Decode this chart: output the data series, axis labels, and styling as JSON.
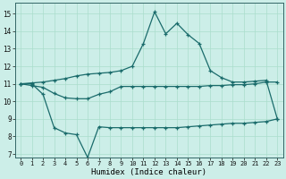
{
  "xlabel": "Humidex (Indice chaleur)",
  "bg_color": "#cceee8",
  "line_color": "#1a6b6b",
  "grid_color": "#aaddcc",
  "x_ticks": [
    0,
    1,
    2,
    3,
    4,
    5,
    6,
    7,
    8,
    9,
    10,
    11,
    12,
    13,
    14,
    15,
    16,
    17,
    18,
    19,
    20,
    21,
    22,
    23
  ],
  "y_ticks": [
    7,
    8,
    9,
    10,
    11,
    12,
    13,
    14,
    15
  ],
  "ylim": [
    6.8,
    15.6
  ],
  "xlim": [
    -0.5,
    23.5
  ],
  "line_upper_x": [
    0,
    1,
    2,
    3,
    4,
    5,
    6,
    7,
    8,
    9,
    10,
    11,
    12,
    13,
    14,
    15,
    16,
    17,
    18,
    19,
    20,
    21,
    22,
    23
  ],
  "line_upper_y": [
    11.0,
    11.05,
    11.1,
    11.2,
    11.3,
    11.45,
    11.55,
    11.6,
    11.65,
    11.75,
    12.0,
    13.3,
    15.1,
    13.85,
    14.45,
    13.8,
    13.3,
    11.75,
    11.35,
    11.1,
    11.1,
    11.15,
    11.2,
    9.0
  ],
  "line_mid_x": [
    0,
    1,
    2,
    3,
    4,
    5,
    6,
    7,
    8,
    9,
    10,
    11,
    12,
    13,
    14,
    15,
    16,
    17,
    18,
    19,
    20,
    21,
    22,
    23
  ],
  "line_mid_y": [
    11.0,
    10.9,
    10.8,
    10.45,
    10.2,
    10.15,
    10.15,
    10.4,
    10.55,
    10.85,
    10.85,
    10.85,
    10.85,
    10.85,
    10.85,
    10.85,
    10.85,
    10.9,
    10.9,
    10.95,
    10.95,
    11.0,
    11.1,
    11.1
  ],
  "line_lower_x": [
    0,
    1,
    2,
    3,
    4,
    5,
    6,
    7,
    8,
    9,
    10,
    11,
    12,
    13,
    14,
    15,
    16,
    17,
    18,
    19,
    20,
    21,
    22,
    23
  ],
  "line_lower_y": [
    11.0,
    11.0,
    10.4,
    8.5,
    8.2,
    8.1,
    6.8,
    8.55,
    8.5,
    8.5,
    8.5,
    8.5,
    8.5,
    8.5,
    8.5,
    8.55,
    8.6,
    8.65,
    8.7,
    8.75,
    8.75,
    8.8,
    8.85,
    9.0
  ]
}
